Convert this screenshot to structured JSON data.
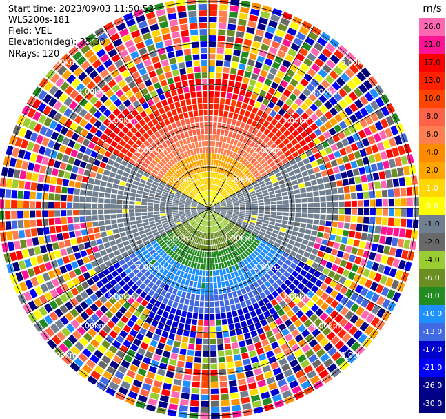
{
  "header": {
    "start_time": "Start time: 2023/09/03 11:50:52",
    "instrument": "WLS200s-181",
    "field": "Field: VEL",
    "elevation": "Elevation(deg): 35.30",
    "nrays": "NRays: 120"
  },
  "chart_data": {
    "type": "heatmap",
    "projection": "polar PPI",
    "field": "VEL",
    "nrays": 120,
    "elevation_deg": 35.3,
    "range_rings": [
      "1.00km",
      "2.00km",
      "3.00km",
      "4.00km",
      "5.00km"
    ],
    "colorbar": {
      "unit": "m/s",
      "ticks": [
        "26.0",
        "21.0",
        "17.0",
        "13.0",
        "10.0",
        "8.0",
        "6.0",
        "4.0",
        "2.0",
        "1.0",
        "0.0",
        "-1.0",
        "-2.0",
        "-4.0",
        "-6.0",
        "-8.0",
        "-10.0",
        "-13.0",
        "-17.0",
        "-21.0",
        "-26.0",
        "-30.0"
      ],
      "colors": [
        "#ff69b4",
        "#ff1493",
        "#ff0000",
        "#ff2200",
        "#ff4500",
        "#ff6347",
        "#ff7f50",
        "#ff8c00",
        "#ffa500",
        "#ffd700",
        "#ffff00",
        "#708090",
        "#696969",
        "#9acd32",
        "#6b8e23",
        "#228b22",
        "#1e90ff",
        "#4169e1",
        "#0000cd",
        "#0000ff",
        "#00008b",
        "#000080"
      ]
    }
  }
}
